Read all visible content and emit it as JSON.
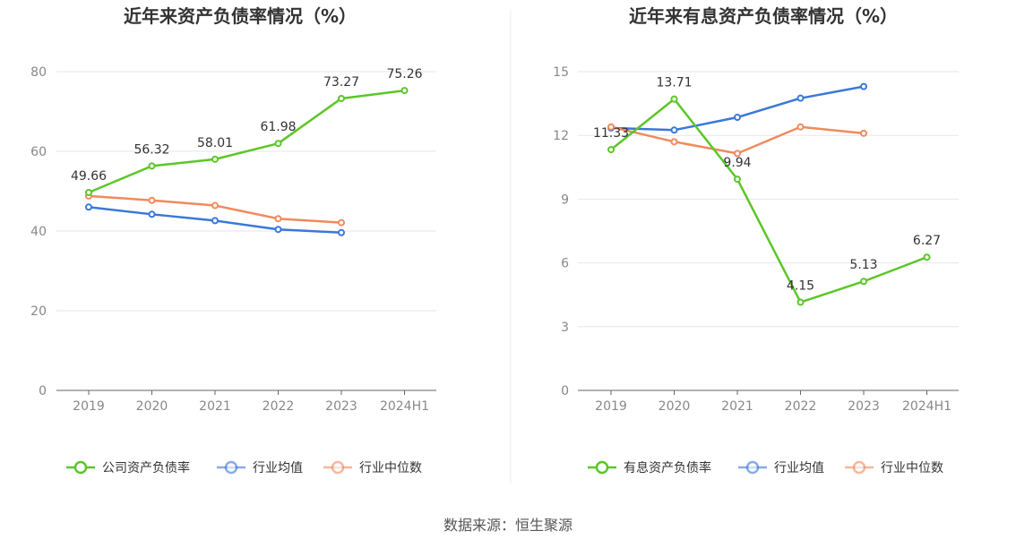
{
  "source": "数据来源：恒生聚源",
  "colors": {
    "company": "#5cc628",
    "avg": "#3a78d8",
    "median": "#f08a5d"
  },
  "chart_data": [
    {
      "type": "line",
      "title": "近年来资产负债率情况（%）",
      "categories": [
        "2019",
        "2020",
        "2021",
        "2022",
        "2023",
        "2024H1"
      ],
      "ylim": [
        0,
        80
      ],
      "yticks": [
        0,
        20,
        40,
        60,
        80
      ],
      "series": [
        {
          "name": "公司资产负债率",
          "key": "company",
          "values": [
            49.66,
            56.32,
            58.01,
            61.98,
            73.27,
            75.26
          ],
          "labels": [
            "49.66",
            "56.32",
            "58.01",
            "61.98",
            "73.27",
            "75.26"
          ]
        },
        {
          "name": "行业均值",
          "key": "avg",
          "values": [
            46.0,
            44.2,
            42.6,
            40.4,
            39.6,
            null
          ]
        },
        {
          "name": "行业中位数",
          "key": "median",
          "values": [
            48.8,
            47.7,
            46.4,
            43.1,
            42.1,
            null
          ]
        }
      ]
    },
    {
      "type": "line",
      "title": "近年来有息资产负债率情况（%）",
      "categories": [
        "2019",
        "2020",
        "2021",
        "2022",
        "2023",
        "2024H1"
      ],
      "ylim": [
        0,
        15
      ],
      "yticks": [
        0,
        3,
        6,
        9,
        12,
        15
      ],
      "series": [
        {
          "name": "有息资产负债率",
          "key": "company",
          "values": [
            11.33,
            13.71,
            9.94,
            4.15,
            5.13,
            6.27
          ],
          "labels": [
            "11.33",
            "13.71",
            "9.94",
            "4.15",
            "5.13",
            "6.27"
          ]
        },
        {
          "name": "行业均值",
          "key": "avg",
          "values": [
            12.35,
            12.25,
            12.85,
            13.75,
            14.3,
            null
          ]
        },
        {
          "name": "行业中位数",
          "key": "median",
          "values": [
            12.4,
            11.7,
            11.15,
            12.4,
            12.1,
            null
          ]
        }
      ]
    }
  ]
}
